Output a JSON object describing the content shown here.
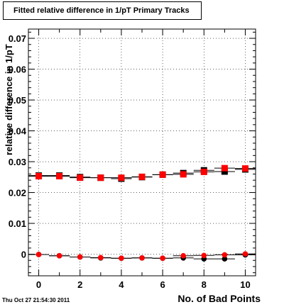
{
  "title": "Fitted relative difference in 1/pT Primary Tracks",
  "timestamp": "Thu Oct 27 21:54:30 2011",
  "chart_data": {
    "type": "scatter",
    "xlabel": "No. of Bad Points",
    "ylabel": "relative difference in 1/pT",
    "xlim": [
      -0.5,
      10.5
    ],
    "ylim": [
      -0.007,
      0.073
    ],
    "x_ticks": [
      "0",
      "2",
      "4",
      "6",
      "8",
      "10"
    ],
    "y_ticks": [
      "0",
      "0.01",
      "0.02",
      "0.03",
      "0.04",
      "0.05",
      "0.06",
      "0.07"
    ],
    "grid": true,
    "series": [
      {
        "marker": "square",
        "color": "#000000",
        "x": [
          0,
          1,
          2,
          3,
          4,
          5,
          6,
          7,
          8,
          9,
          10
        ],
        "y": [
          0.0255,
          0.0255,
          0.025,
          0.0248,
          0.0245,
          0.025,
          0.0258,
          0.0263,
          0.0272,
          0.0268,
          0.0275
        ]
      },
      {
        "marker": "square",
        "color": "#ff0000",
        "x": [
          0,
          1,
          2,
          3,
          4,
          5,
          6,
          7,
          8,
          9,
          10
        ],
        "y": [
          0.0253,
          0.0253,
          0.0248,
          0.0248,
          0.0248,
          0.0251,
          0.0258,
          0.0259,
          0.0267,
          0.0279,
          0.0278
        ]
      },
      {
        "marker": "circle",
        "color": "#000000",
        "x": [
          0,
          1,
          2,
          3,
          4,
          5,
          6,
          7,
          8,
          9,
          10
        ],
        "y": [
          -0.0001,
          -0.0005,
          -0.0009,
          -0.0012,
          -0.0013,
          -0.0012,
          -0.0013,
          -0.0012,
          -0.0015,
          -0.0015,
          -0.0002
        ]
      },
      {
        "marker": "circle",
        "color": "#ff0000",
        "x": [
          0,
          1,
          2,
          3,
          4,
          5,
          6,
          7,
          8,
          9,
          10
        ],
        "y": [
          -0.0001,
          -0.0005,
          -0.0009,
          -0.0011,
          -0.0013,
          -0.0012,
          -0.0013,
          -0.0005,
          -0.0004,
          -0.0002,
          0.0001
        ]
      }
    ]
  }
}
